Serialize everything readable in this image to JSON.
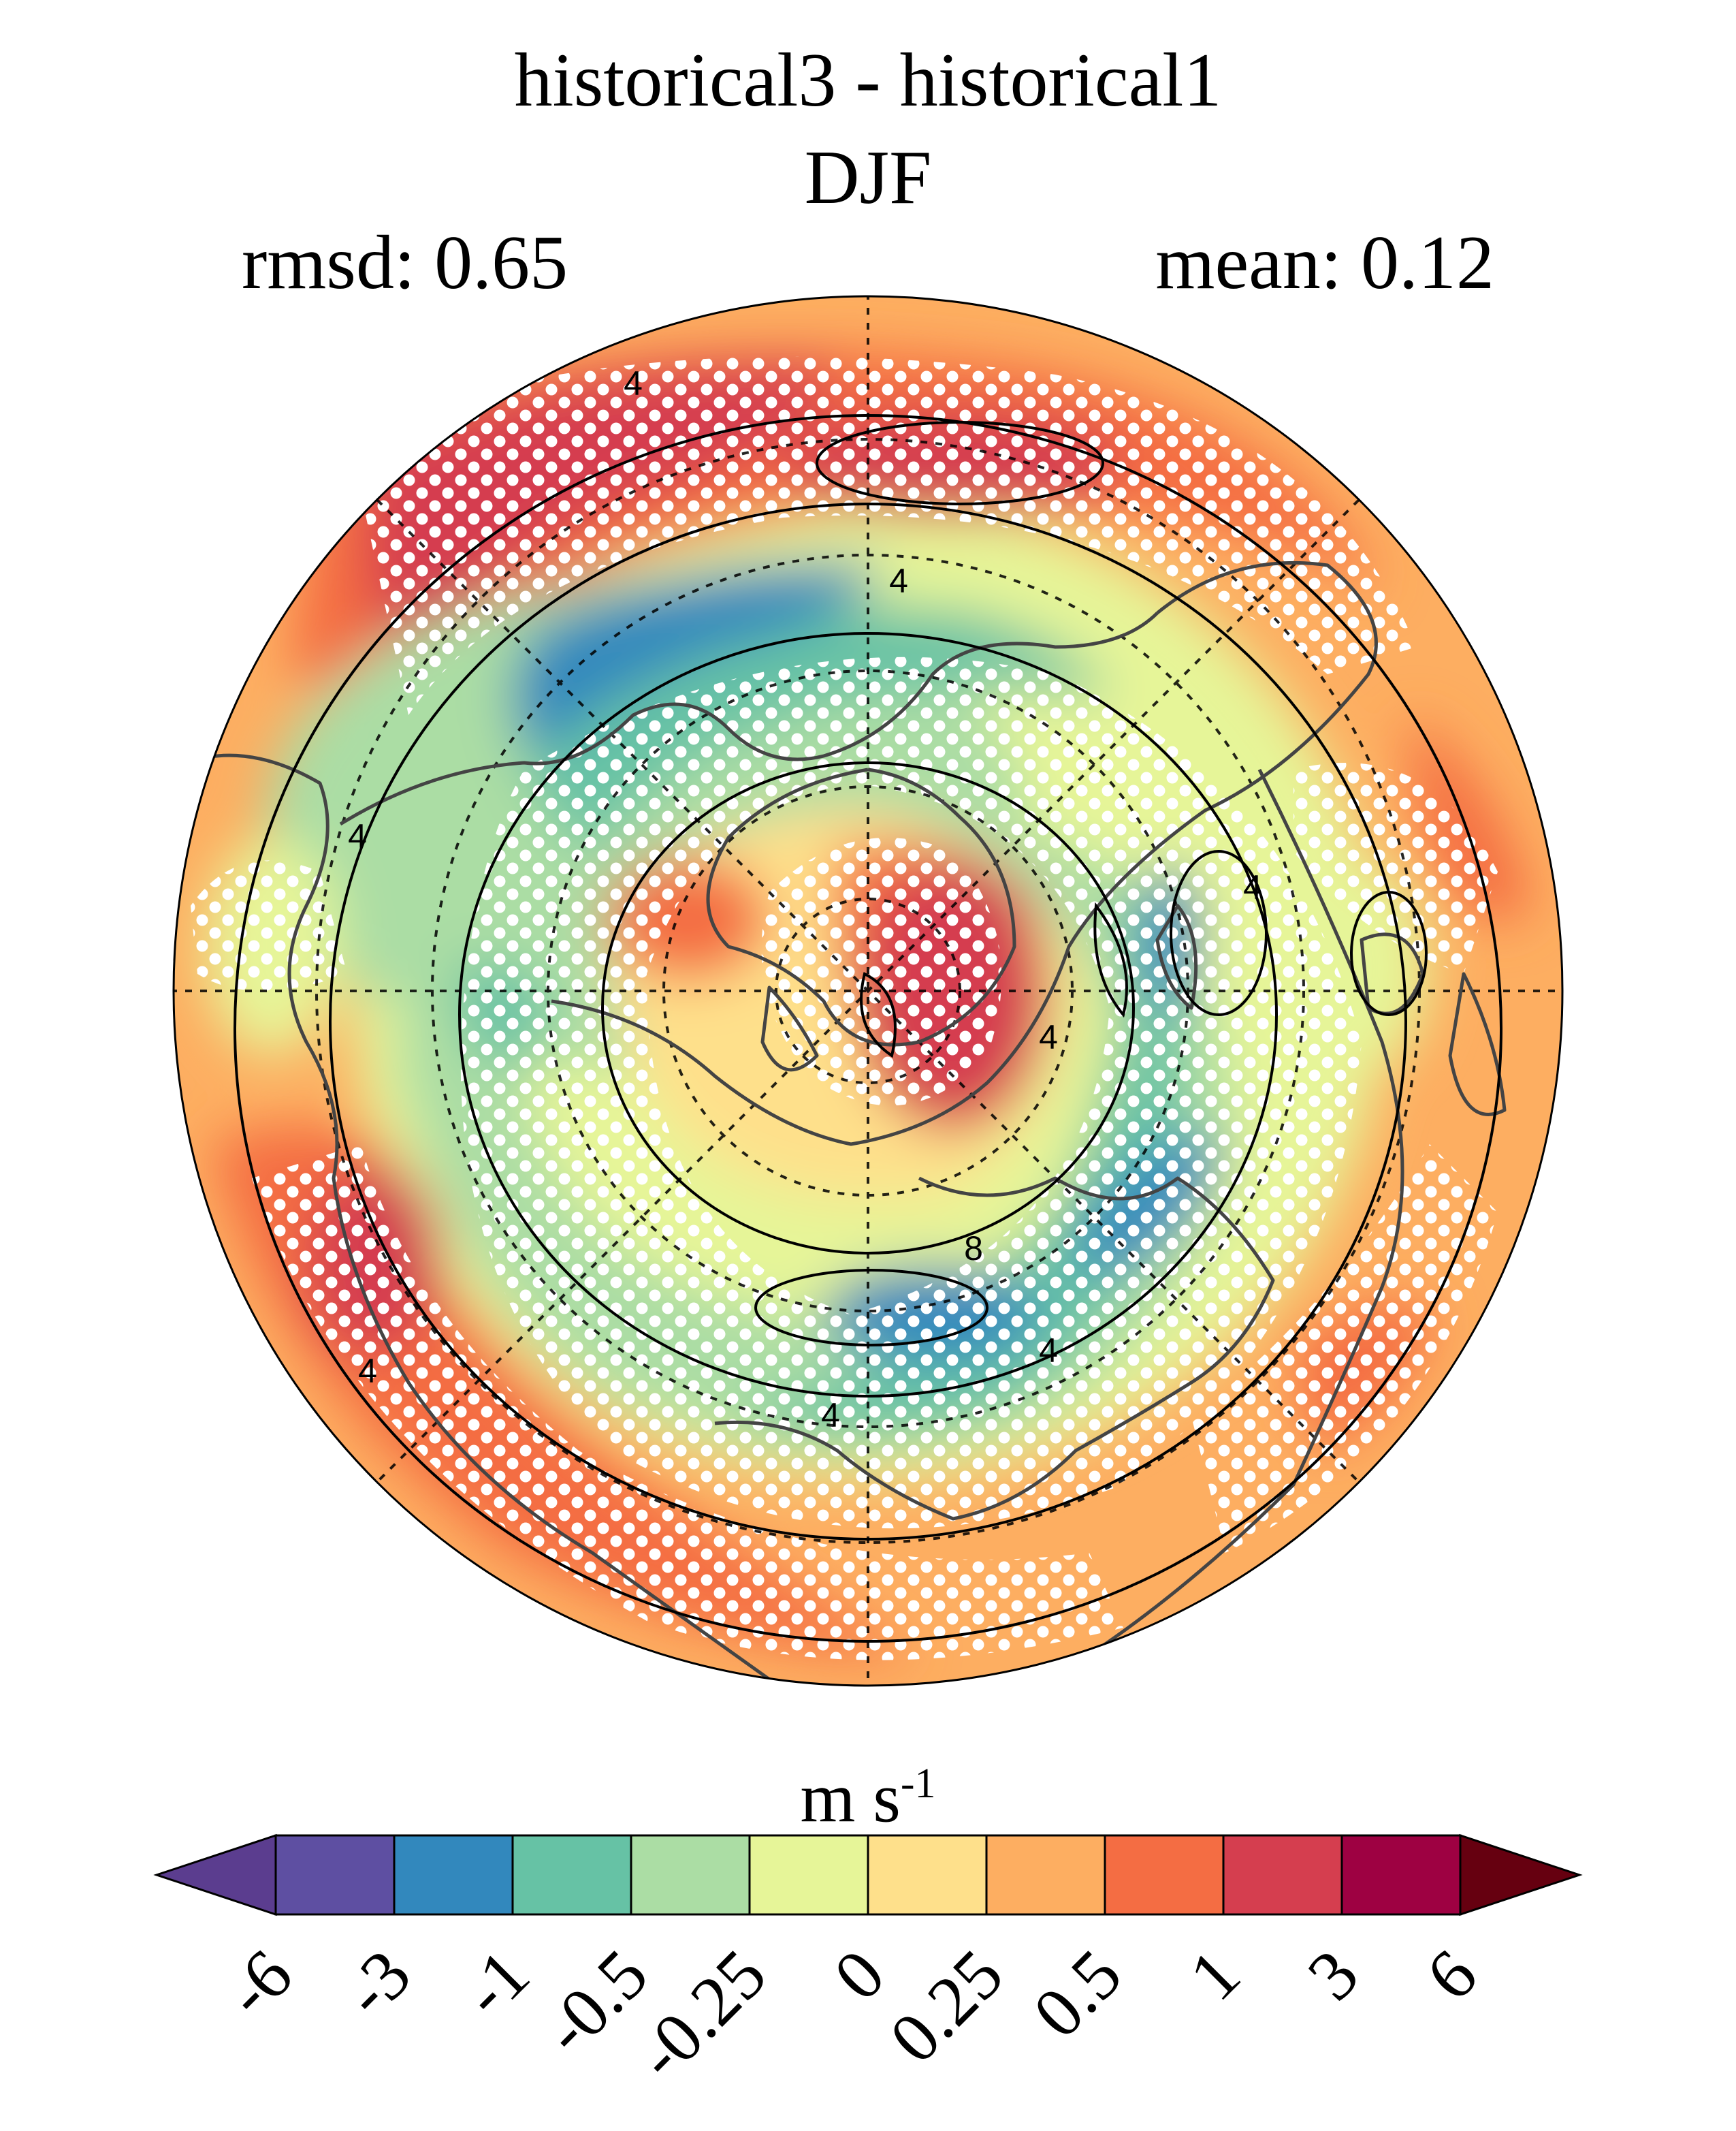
{
  "title": "historical3 - historical1",
  "season": "DJF",
  "rmsd": "rmsd: 0.65",
  "mean": "mean: 0.12",
  "units_base": "m s",
  "units_exp": "-1",
  "contour_labels": [
    "4",
    "4",
    "4",
    "4",
    "4",
    "4",
    "4",
    "4",
    "8"
  ],
  "colorbar": {
    "ticks": [
      "-6",
      "-3",
      "-1",
      "-0.5",
      "-0.25",
      "0",
      "0.25",
      "0.5",
      "1",
      "3",
      "6"
    ],
    "colors": [
      "#5b3d8f",
      "#5e4fa2",
      "#3288bd",
      "#66c2a5",
      "#abdda4",
      "#e6f598",
      "#fee08b",
      "#fdae61",
      "#f46d43",
      "#d53e4f",
      "#9e0142",
      "#660010"
    ]
  }
}
